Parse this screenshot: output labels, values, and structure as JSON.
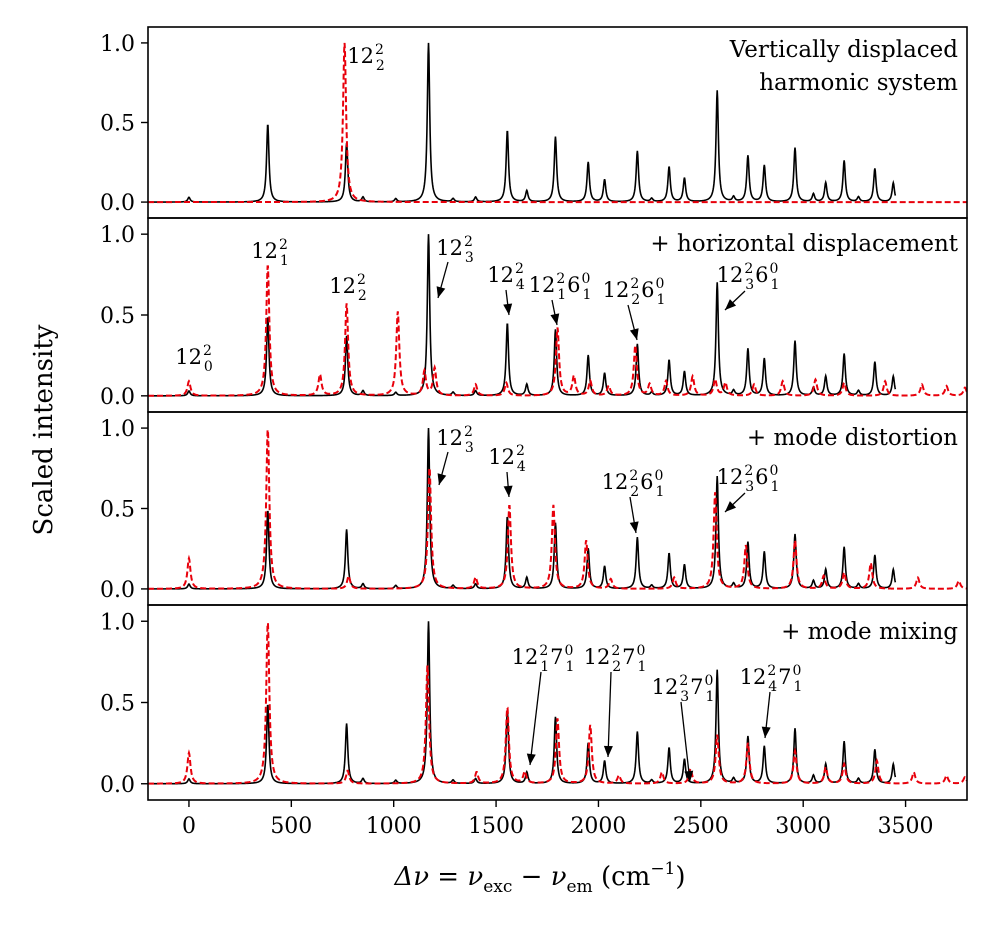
{
  "chart_data": {
    "type": "line",
    "ylabel": "Scaled intensity",
    "xlabel": "Δν̃ = ν̃exc − ν̃em (cm⁻¹)",
    "xlabel_parts": {
      "delta": "Δ",
      "nu": "ν",
      "tilde": "~",
      "equals": "=",
      "minus": "−",
      "sub_exc": "exc",
      "sub_em": "em",
      "unit": "(cm",
      "unit_sup": "−1",
      "unit_close": ")"
    },
    "xlim": [
      -200,
      3800
    ],
    "ylim": [
      -0.1,
      1.1
    ],
    "x_ticks": [
      0,
      500,
      1000,
      1500,
      2000,
      2500,
      3000,
      3500
    ],
    "x_tick_labels": [
      "0",
      "500",
      "1000",
      "1500",
      "2000",
      "2500",
      "3000",
      "3500"
    ],
    "y_ticks": [
      0.0,
      0.5,
      1.0
    ],
    "y_tick_labels": [
      "0.0",
      "0.5",
      "1.0"
    ],
    "reference_series": {
      "name": "reference spectrum",
      "color": "#000000",
      "style": "solid",
      "x_end": 3450,
      "peaks": [
        [
          0,
          0.03
        ],
        [
          385,
          0.49
        ],
        [
          770,
          0.37
        ],
        [
          850,
          0.03
        ],
        [
          1010,
          0.02
        ],
        [
          1170,
          1.0
        ],
        [
          1290,
          0.02
        ],
        [
          1400,
          0.03
        ],
        [
          1555,
          0.45
        ],
        [
          1650,
          0.07
        ],
        [
          1790,
          0.41
        ],
        [
          1950,
          0.25
        ],
        [
          2030,
          0.14
        ],
        [
          2190,
          0.32
        ],
        [
          2260,
          0.02
        ],
        [
          2345,
          0.22
        ],
        [
          2420,
          0.15
        ],
        [
          2580,
          0.7
        ],
        [
          2660,
          0.03
        ],
        [
          2730,
          0.29
        ],
        [
          2810,
          0.23
        ],
        [
          2960,
          0.34
        ],
        [
          3050,
          0.05
        ],
        [
          3110,
          0.12
        ],
        [
          3200,
          0.26
        ],
        [
          3270,
          0.03
        ],
        [
          3350,
          0.21
        ],
        [
          3440,
          0.12
        ]
      ]
    },
    "panels": [
      {
        "label": [
          "Vertically displaced",
          "harmonic system"
        ],
        "series": {
          "name": "model",
          "color": "#e8000b",
          "style": "dashed",
          "x_end": 3800,
          "peaks": [
            [
              760,
              1.0
            ]
          ]
        },
        "annotations": [
          {
            "base": "12",
            "sup": "2",
            "sub": "2"
          }
        ]
      },
      {
        "label": [
          "+ horizontal displacement"
        ],
        "series": {
          "name": "model",
          "color": "#e8000b",
          "style": "dashed",
          "x_end": 3800,
          "peaks": [
            [
              0,
              0.09
            ],
            [
              385,
              0.81
            ],
            [
              640,
              0.13
            ],
            [
              770,
              0.57
            ],
            [
              1020,
              0.52
            ],
            [
              1150,
              0.15
            ],
            [
              1200,
              0.17
            ],
            [
              1400,
              0.07
            ],
            [
              1550,
              0.08
            ],
            [
              1800,
              0.42
            ],
            [
              1880,
              0.12
            ],
            [
              1960,
              0.09
            ],
            [
              2050,
              0.06
            ],
            [
              2180,
              0.31
            ],
            [
              2250,
              0.07
            ],
            [
              2330,
              0.09
            ],
            [
              2460,
              0.12
            ],
            [
              2570,
              0.1
            ],
            [
              2620,
              0.08
            ],
            [
              2760,
              0.07
            ],
            [
              2900,
              0.09
            ],
            [
              3060,
              0.1
            ],
            [
              3200,
              0.08
            ],
            [
              3400,
              0.09
            ],
            [
              3580,
              0.07
            ],
            [
              3700,
              0.06
            ],
            [
              3790,
              0.05
            ]
          ]
        },
        "annotations": [
          {
            "base": "12",
            "sup": "2",
            "sub": "0"
          },
          {
            "base": "12",
            "sup": "2",
            "sub": "1"
          },
          {
            "base": "12",
            "sup": "2",
            "sub": "2"
          },
          {
            "base": "12",
            "sup": "2",
            "sub": "3"
          },
          {
            "base": "12",
            "sup": "2",
            "sub": "4"
          },
          {
            "base": "12",
            "sup": "2",
            "sub": "1",
            "base2": "6",
            "sup2": "0",
            "sub2": "1"
          },
          {
            "base": "12",
            "sup": "2",
            "sub": "2",
            "base2": "6",
            "sup2": "0",
            "sub2": "1"
          },
          {
            "base": "12",
            "sup": "2",
            "sub": "3",
            "base2": "6",
            "sup2": "0",
            "sub2": "1"
          }
        ]
      },
      {
        "label": [
          "+ mode distortion"
        ],
        "series": {
          "name": "model",
          "color": "#e8000b",
          "style": "dashed",
          "x_end": 3800,
          "peaks": [
            [
              0,
              0.19
            ],
            [
              385,
              1.0
            ],
            [
              780,
              0.08
            ],
            [
              1175,
              0.76
            ],
            [
              1400,
              0.07
            ],
            [
              1565,
              0.52
            ],
            [
              1780,
              0.52
            ],
            [
              1940,
              0.3
            ],
            [
              2060,
              0.06
            ],
            [
              2370,
              0.07
            ],
            [
              2570,
              0.6
            ],
            [
              2720,
              0.27
            ],
            [
              2960,
              0.3
            ],
            [
              3100,
              0.08
            ],
            [
              3200,
              0.1
            ],
            [
              3330,
              0.16
            ],
            [
              3560,
              0.07
            ],
            [
              3760,
              0.05
            ]
          ]
        },
        "annotations": [
          {
            "base": "12",
            "sup": "2",
            "sub": "3"
          },
          {
            "base": "12",
            "sup": "2",
            "sub": "4"
          },
          {
            "base": "12",
            "sup": "2",
            "sub": "2",
            "base2": "6",
            "sup2": "0",
            "sub2": "1"
          },
          {
            "base": "12",
            "sup": "2",
            "sub": "3",
            "base2": "6",
            "sup2": "0",
            "sub2": "1"
          }
        ]
      },
      {
        "label": [
          "+ mode mixing"
        ],
        "series": {
          "name": "model",
          "color": "#e8000b",
          "style": "dashed",
          "x_end": 3800,
          "peaks": [
            [
              0,
              0.19
            ],
            [
              385,
              1.0
            ],
            [
              775,
              0.08
            ],
            [
              1165,
              0.73
            ],
            [
              1405,
              0.07
            ],
            [
              1555,
              0.47
            ],
            [
              1640,
              0.07
            ],
            [
              1800,
              0.4
            ],
            [
              1960,
              0.36
            ],
            [
              2100,
              0.05
            ],
            [
              2310,
              0.07
            ],
            [
              2450,
              0.09
            ],
            [
              2580,
              0.3
            ],
            [
              2730,
              0.25
            ],
            [
              2960,
              0.2
            ],
            [
              3110,
              0.1
            ],
            [
              3200,
              0.12
            ],
            [
              3360,
              0.14
            ],
            [
              3540,
              0.07
            ],
            [
              3700,
              0.05
            ],
            [
              3790,
              0.04
            ]
          ]
        },
        "annotations": [
          {
            "base": "12",
            "sup": "2",
            "sub": "1",
            "base2": "7",
            "sup2": "0",
            "sub2": "1"
          },
          {
            "base": "12",
            "sup": "2",
            "sub": "2",
            "base2": "7",
            "sup2": "0",
            "sub2": "1"
          },
          {
            "base": "12",
            "sup": "2",
            "sub": "3",
            "base2": "7",
            "sup2": "0",
            "sub2": "1"
          },
          {
            "base": "12",
            "sup": "2",
            "sub": "4",
            "base2": "7",
            "sup2": "0",
            "sub2": "1"
          }
        ]
      }
    ]
  }
}
